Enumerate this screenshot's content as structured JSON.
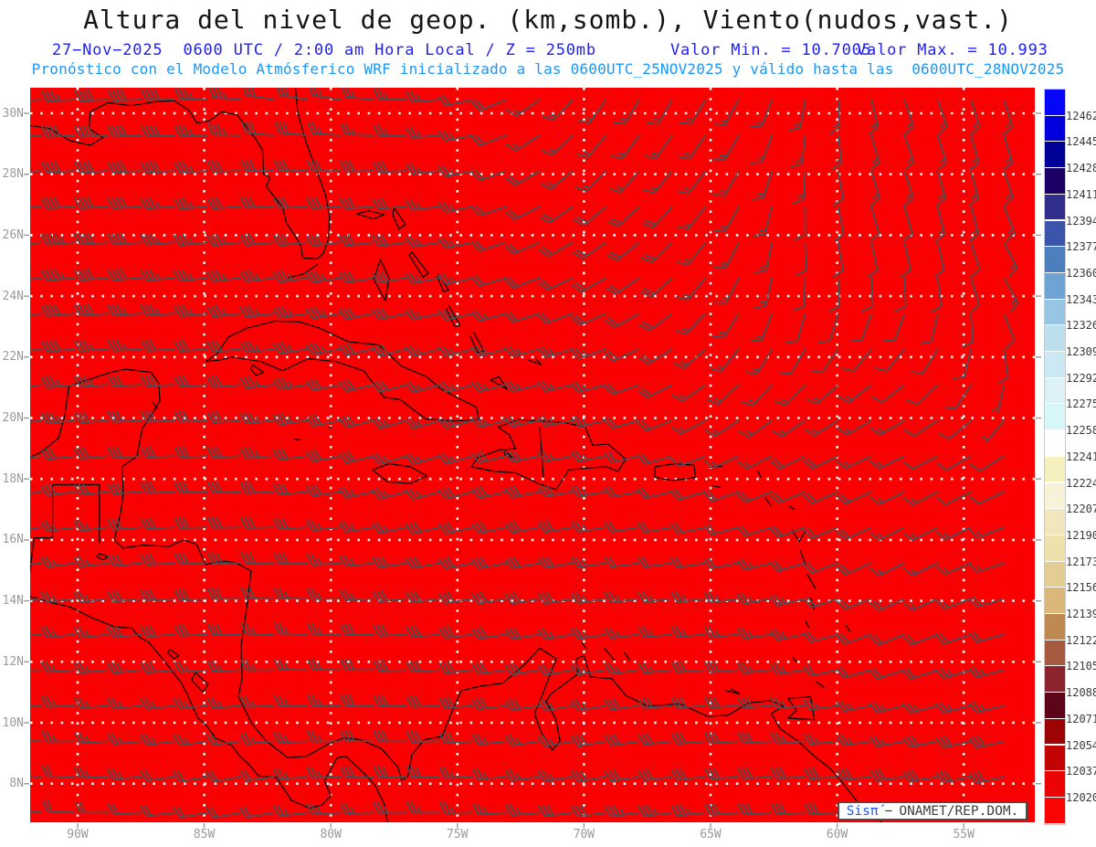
{
  "header": {
    "title": "Altura del nivel de geop. (km,somb.), Viento(nudos,vast.)",
    "datetime_line": "27−Nov−2025  0600 UTC / 2:00 am Hora Local / Z = 250mb",
    "valor_min": "Valor Min. = 10.7005",
    "valor_max": "Valor Max. = 10.993",
    "forecast_line": "Pronóstico con el Modelo Atmósferico WRF inicializado a las 0600UTC_25NOV2025 y válido hasta las  0600UTC_28NOV2025",
    "title_color": "#151515",
    "datetime_color": "#2222ee",
    "forecast_color": "#1b97f7"
  },
  "map": {
    "field_color": "#fa0000",
    "coast_color": "#000000",
    "barb_color": "#4a5056",
    "grid_dot_color": "#f5f5f5",
    "axis_label_color": "#9a9a9a",
    "lat_labels": [
      "30N",
      "28N",
      "26N",
      "24N",
      "22N",
      "20N",
      "18N",
      "16N",
      "14N",
      "12N",
      "10N",
      "8N"
    ],
    "lat_values": [
      30,
      28,
      26,
      24,
      22,
      20,
      18,
      16,
      14,
      12,
      10,
      8
    ],
    "lon_labels": [
      "90W",
      "85W",
      "80W",
      "75W",
      "70W",
      "65W",
      "60W",
      "55W"
    ],
    "lon_values_w": [
      90,
      85,
      80,
      75,
      70,
      65,
      60,
      55
    ],
    "lon_range_w": [
      91.88,
      52.2
    ],
    "lat_range_n": [
      30.84,
      6.73
    ]
  },
  "wind_field": {
    "units": "knots",
    "control_lons_w": [
      92,
      82,
      72,
      62,
      52
    ],
    "control_lats_n": [
      31,
      25,
      19,
      13,
      7
    ],
    "u": [
      [
        40,
        32,
        14,
        2,
        -8
      ],
      [
        42,
        34,
        22,
        3,
        -10
      ],
      [
        33,
        30,
        26,
        15,
        9
      ],
      [
        25,
        28,
        30,
        22,
        17
      ],
      [
        18,
        23,
        28,
        33,
        29
      ]
    ],
    "v": [
      [
        4,
        -6,
        8,
        16,
        14
      ],
      [
        7,
        2,
        9,
        13,
        11
      ],
      [
        2,
        4,
        7,
        6,
        7
      ],
      [
        1,
        1,
        3,
        5,
        5
      ],
      [
        0,
        2,
        2,
        3,
        4
      ]
    ],
    "barb_grid": {
      "lon_start_w": 91.4,
      "lon_step": 1.31,
      "cols": 30,
      "lat_start_n": 30.45,
      "lat_step": 1.17,
      "rows": 21
    }
  },
  "colorbar": {
    "levels": [
      12462,
      12445,
      12428,
      12411,
      12394,
      12377,
      12360,
      12343,
      12326,
      12309,
      12292,
      12275,
      12258,
      12241,
      12224,
      12207,
      12190,
      12173,
      12156,
      12139,
      12122,
      12105,
      12088,
      12071,
      12054,
      12037,
      12020
    ],
    "segment_colors": [
      "#0404ff",
      "#0000dc",
      "#000098",
      "#1c0066",
      "#312e8c",
      "#3a55aa",
      "#4d7ebe",
      "#6fa3d4",
      "#97c6e4",
      "#bcdfed",
      "#cbe9f2",
      "#def1f6",
      "#d7f7fa",
      "#fefefe",
      "#f6f0be",
      "#f8f3d8",
      "#f2e6be",
      "#efe1ac",
      "#e3cd92",
      "#dab87a",
      "#be8a52",
      "#a65a40",
      "#8c2430",
      "#5e0418",
      "#9c0404",
      "#c20404",
      "#ec0404",
      "#fb0404"
    ],
    "label_color": "#3a3a3a"
  },
  "watermark": {
    "brand": "Sisπ́",
    "separator": "−",
    "org": "ONAMET/REP.DOM.",
    "brand_color": "#1e56f2",
    "text_color": "#3f3f3f"
  }
}
